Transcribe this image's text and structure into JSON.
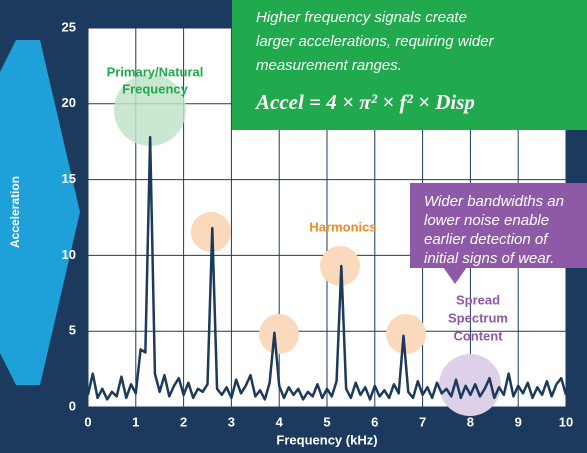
{
  "chart_data": {
    "type": "line",
    "xlabel": "Frequency (kHz)",
    "ylabel": "Acceleration",
    "x": [
      0,
      0.1,
      0.2,
      0.3,
      0.4,
      0.5,
      0.6,
      0.7,
      0.8,
      0.9,
      1,
      1.1,
      1.2,
      1.3,
      1.4,
      1.5,
      1.6,
      1.7,
      1.8,
      1.9,
      2,
      2.1,
      2.2,
      2.3,
      2.4,
      2.5,
      2.6,
      2.7,
      2.8,
      2.9,
      3,
      3.1,
      3.2,
      3.3,
      3.4,
      3.5,
      3.6,
      3.7,
      3.8,
      3.9,
      4,
      4.1,
      4.2,
      4.3,
      4.4,
      4.5,
      4.6,
      4.7,
      4.8,
      4.9,
      5,
      5.1,
      5.2,
      5.3,
      5.4,
      5.5,
      5.6,
      5.7,
      5.8,
      5.9,
      6,
      6.1,
      6.2,
      6.3,
      6.4,
      6.5,
      6.6,
      6.7,
      6.8,
      6.9,
      7,
      7.1,
      7.2,
      7.3,
      7.4,
      7.5,
      7.6,
      7.7,
      7.8,
      7.9,
      8,
      8.1,
      8.2,
      8.3,
      8.4,
      8.5,
      8.6,
      8.7,
      8.8,
      8.9,
      9,
      9.1,
      9.2,
      9.3,
      9.4,
      9.5,
      9.6,
      9.7,
      9.8,
      9.9,
      10
    ],
    "values": [
      0.8,
      2.2,
      0.6,
      1.2,
      0.5,
      1.0,
      0.7,
      2.0,
      0.6,
      1.5,
      0.9,
      3.8,
      3.6,
      17.8,
      2.2,
      1.0,
      2.1,
      0.7,
      1.4,
      1.9,
      0.8,
      1.6,
      0.6,
      1.2,
      1.0,
      1.5,
      11.8,
      1.2,
      0.8,
      1.3,
      0.6,
      1.8,
      0.9,
      1.4,
      2.1,
      0.7,
      1.1,
      0.5,
      1.6,
      4.9,
      1.4,
      0.6,
      1.3,
      0.8,
      1.2,
      0.5,
      1.0,
      0.7,
      1.5,
      0.6,
      1.2,
      0.7,
      1.7,
      9.3,
      1.2,
      0.6,
      1.6,
      0.8,
      1.3,
      0.5,
      1.4,
      0.7,
      1.1,
      0.6,
      1.5,
      0.9,
      4.7,
      1.0,
      0.6,
      1.7,
      0.8,
      1.3,
      0.6,
      1.6,
      0.9,
      1.2,
      0.7,
      1.8,
      0.6,
      1.4,
      0.8,
      1.5,
      0.7,
      1.2,
      1.9,
      0.6,
      1.3,
      0.8,
      2.2,
      0.7,
      1.4,
      0.9,
      1.6,
      0.6,
      1.3,
      0.8,
      1.7,
      0.7,
      1.5,
      1.9,
      0.8
    ],
    "color": "#1b3a5c",
    "xlim": [
      0,
      10
    ],
    "xticks": [
      0,
      1,
      2,
      3,
      4,
      5,
      6,
      7,
      8,
      9,
      10
    ],
    "ylim": [
      0,
      25
    ],
    "yticks": [
      0,
      5,
      10,
      15,
      20,
      25
    ],
    "grid": true,
    "annotations": {
      "primary": [
        "Primary/Natural",
        "Frequency"
      ],
      "harmonics": "Harmonics",
      "spread": [
        "Spread",
        "Spectrum",
        "Content"
      ],
      "note_green": [
        "Higher frequency signals create",
        "larger accelerations, requiring wider",
        "measurement ranges."
      ],
      "formula": "Accel = 4 × π² × f² × Disp",
      "note_purple": [
        "Wider bandwidths an",
        "lower noise enable",
        "earlier detection of",
        "initial signs of wear."
      ]
    }
  }
}
